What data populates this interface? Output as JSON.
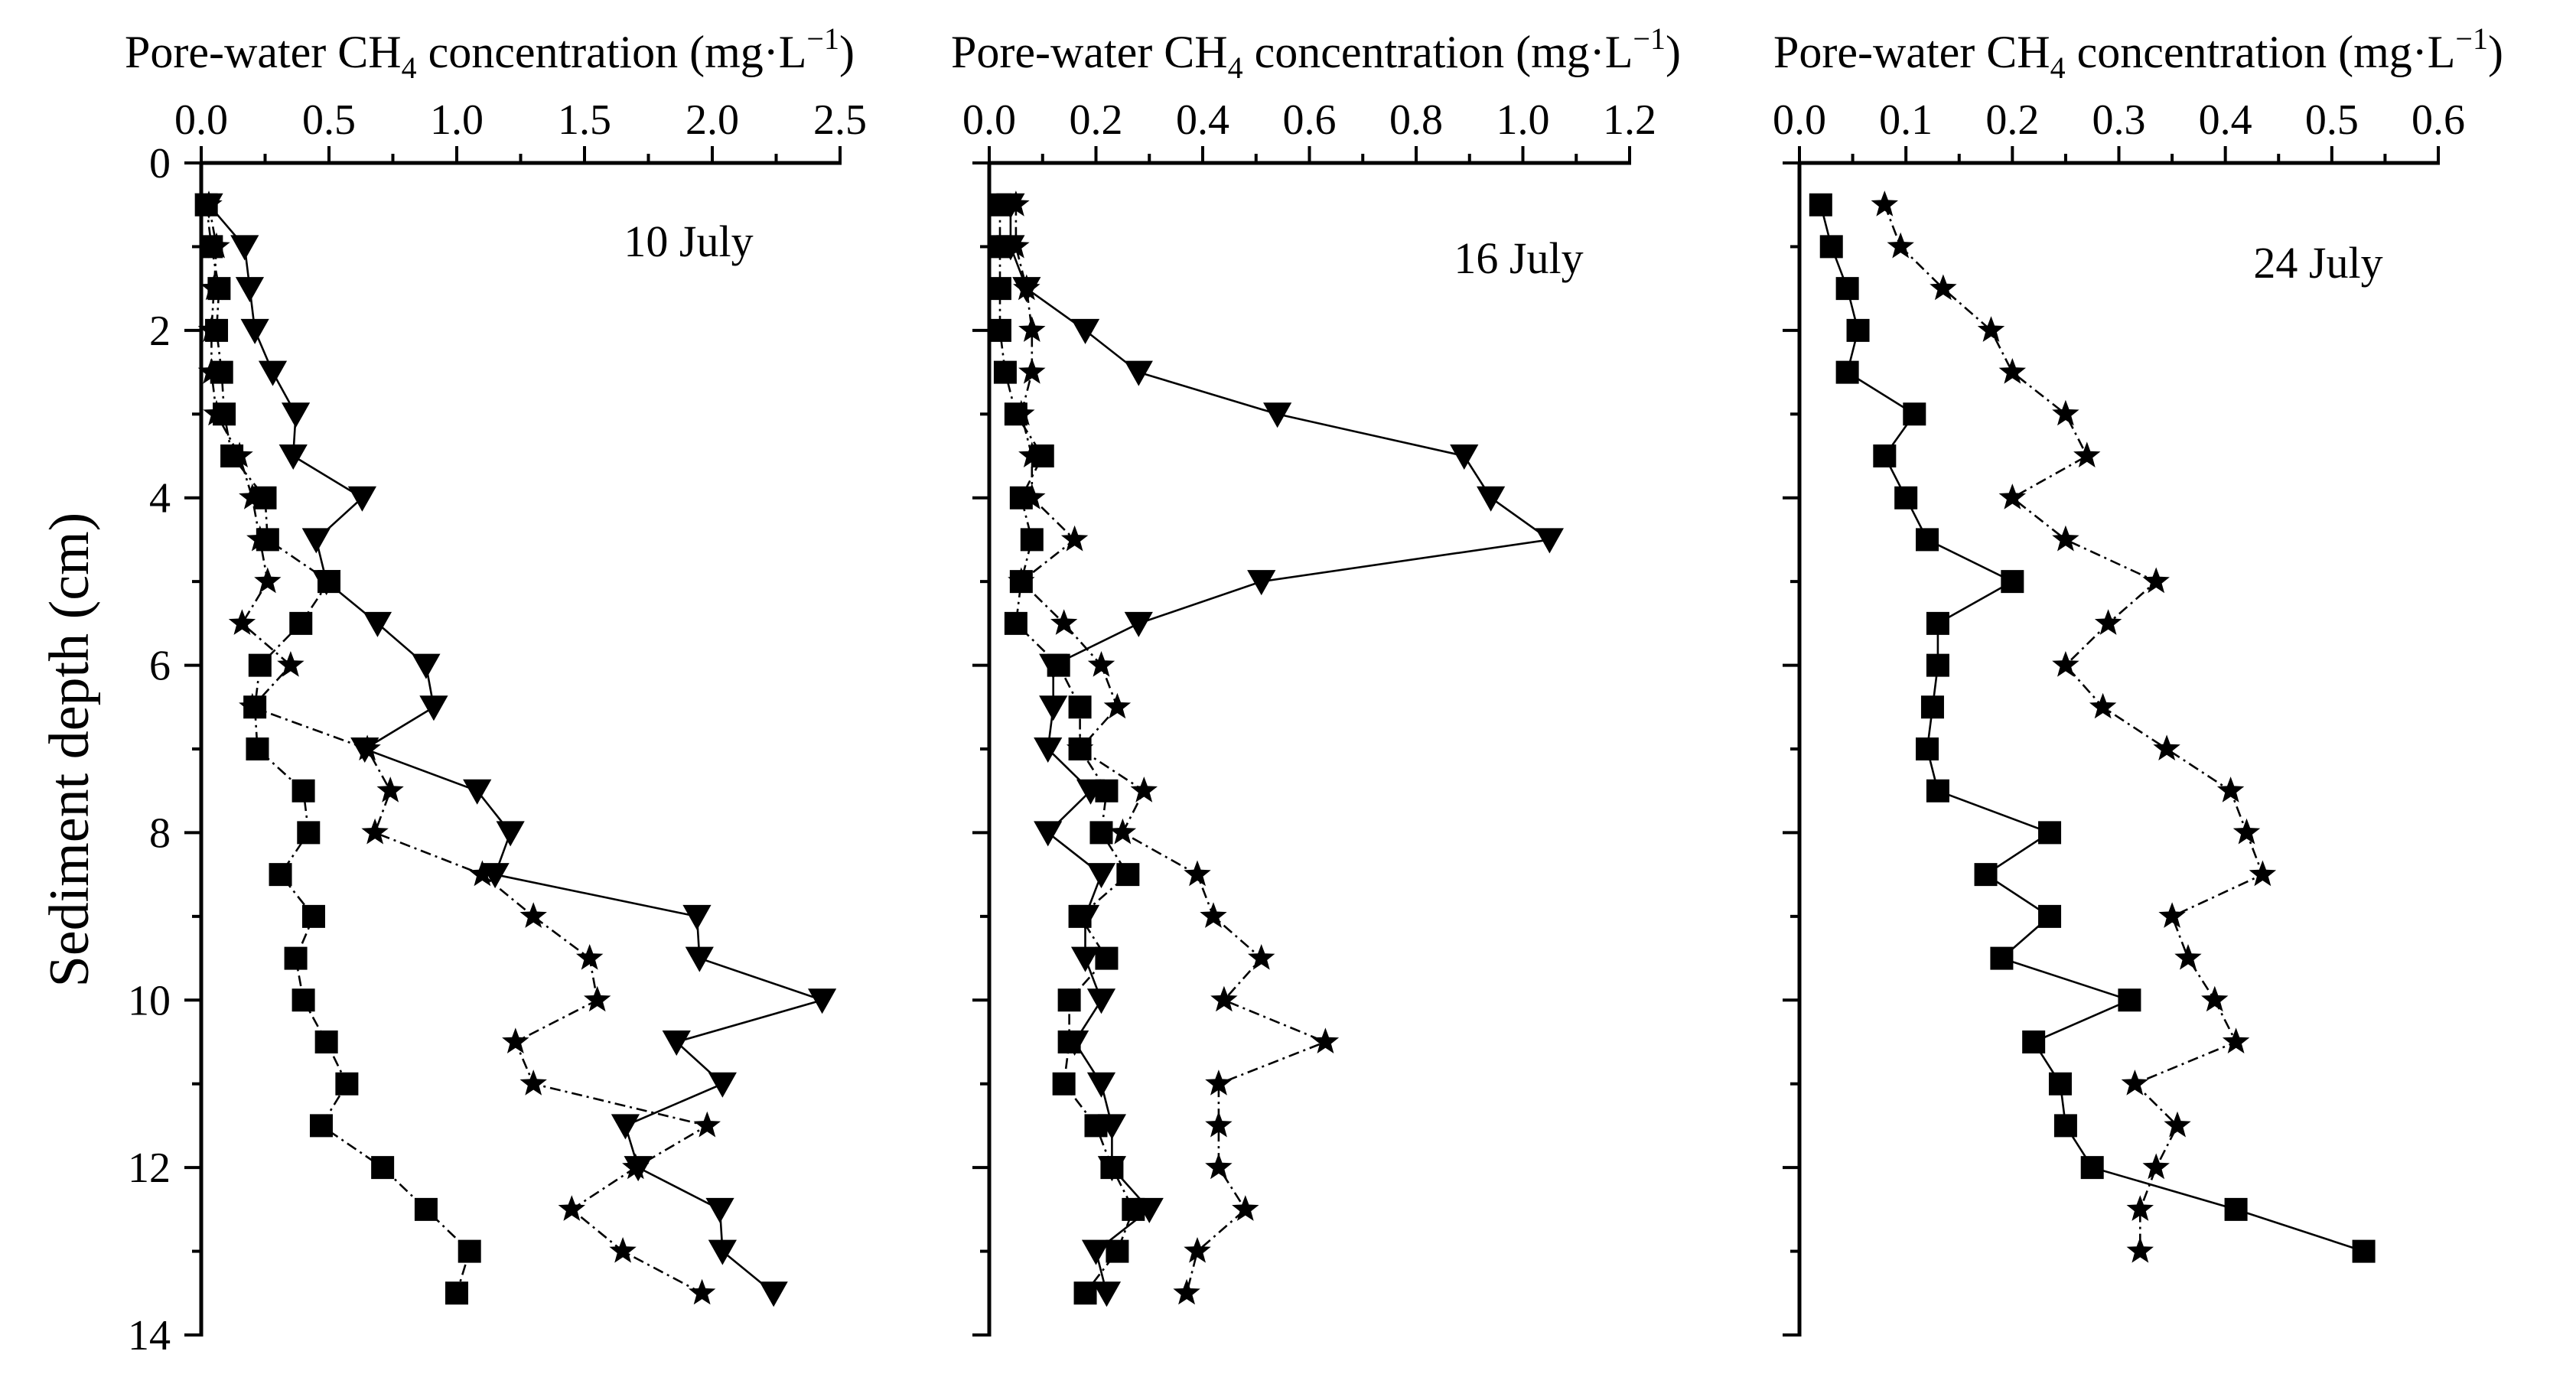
{
  "chart_data": [
    {
      "type": "scatter",
      "title": "",
      "xlabel": "Pore-water CH4 concentration (mg·L−1)",
      "ylabel": "Sediment depth (cm)",
      "date_label": "10 July",
      "xlim": [
        0,
        2.5
      ],
      "ylim": [
        0,
        14
      ],
      "y_inverted": true,
      "x_axis_position": "top",
      "x_ticks": [
        "0.0",
        "0.5",
        "1.0",
        "1.5",
        "2.0",
        "2.5"
      ],
      "x_minor_ticks": [
        0.25,
        0.75,
        1.25,
        1.75,
        2.25
      ],
      "y_ticks": [
        "0",
        "2",
        "4",
        "6",
        "8",
        "10",
        "12",
        "14"
      ],
      "y_minor_ticks": [
        1,
        3,
        5,
        7,
        9,
        11,
        13
      ],
      "series": [
        {
          "marker": "square",
          "line": "dash-dot",
          "points": [
            [
              0.02,
              0.5
            ],
            [
              0.04,
              1
            ],
            [
              0.07,
              1.5
            ],
            [
              0.06,
              2
            ],
            [
              0.08,
              2.5
            ],
            [
              0.09,
              3
            ],
            [
              0.12,
              3.5
            ],
            [
              0.25,
              4
            ],
            [
              0.26,
              4.5
            ],
            [
              0.5,
              5
            ],
            [
              0.39,
              5.5
            ],
            [
              0.23,
              6
            ],
            [
              0.21,
              6.5
            ],
            [
              0.22,
              7
            ],
            [
              0.4,
              7.5
            ],
            [
              0.42,
              8
            ],
            [
              0.31,
              8.5
            ],
            [
              0.44,
              9
            ],
            [
              0.37,
              9.5
            ],
            [
              0.4,
              10
            ],
            [
              0.49,
              10.5
            ],
            [
              0.57,
              11
            ],
            [
              0.47,
              11.5
            ],
            [
              0.71,
              12
            ],
            [
              0.88,
              12.5
            ],
            [
              1.05,
              13
            ],
            [
              1.0,
              13.5
            ]
          ]
        },
        {
          "marker": "star",
          "line": "dash-dot",
          "points": [
            [
              0.03,
              0.5
            ],
            [
              0.06,
              1
            ],
            [
              0.05,
              1.5
            ],
            [
              0.04,
              2
            ],
            [
              0.04,
              2.5
            ],
            [
              0.06,
              3
            ],
            [
              0.15,
              3.5
            ],
            [
              0.2,
              4
            ],
            [
              0.23,
              4.5
            ],
            [
              0.26,
              5
            ],
            [
              0.16,
              5.5
            ],
            [
              0.35,
              6
            ],
            [
              0.2,
              6.5
            ],
            [
              0.65,
              7
            ],
            [
              0.74,
              7.5
            ],
            [
              0.68,
              8
            ],
            [
              1.1,
              8.5
            ],
            [
              1.3,
              9
            ],
            [
              1.52,
              9.5
            ],
            [
              1.55,
              10
            ],
            [
              1.23,
              10.5
            ],
            [
              1.3,
              11
            ],
            [
              1.98,
              11.5
            ],
            [
              1.7,
              12
            ],
            [
              1.45,
              12.5
            ],
            [
              1.65,
              13
            ],
            [
              1.96,
              13.5
            ]
          ]
        },
        {
          "marker": "triangle-down",
          "line": "solid",
          "points": [
            [
              0.03,
              0.5
            ],
            [
              0.17,
              1
            ],
            [
              0.19,
              1.5
            ],
            [
              0.21,
              2
            ],
            [
              0.28,
              2.5
            ],
            [
              0.37,
              3
            ],
            [
              0.36,
              3.5
            ],
            [
              0.63,
              4
            ],
            [
              0.45,
              4.5
            ],
            [
              0.49,
              5
            ],
            [
              0.69,
              5.5
            ],
            [
              0.88,
              6
            ],
            [
              0.91,
              6.5
            ],
            [
              0.64,
              7
            ],
            [
              1.08,
              7.5
            ],
            [
              1.21,
              8
            ],
            [
              1.15,
              8.5
            ],
            [
              1.94,
              9
            ],
            [
              1.95,
              9.5
            ],
            [
              2.43,
              10
            ],
            [
              1.86,
              10.5
            ],
            [
              2.04,
              11
            ],
            [
              1.66,
              11.5
            ],
            [
              1.71,
              12
            ],
            [
              2.03,
              12.5
            ],
            [
              2.04,
              13
            ],
            [
              2.24,
              13.5
            ]
          ]
        }
      ]
    },
    {
      "type": "scatter",
      "title": "",
      "xlabel": "Pore-water CH4 concentration (mg·L−1)",
      "date_label": "16 July",
      "xlim": [
        0,
        1.2
      ],
      "ylim": [
        0,
        14
      ],
      "y_inverted": true,
      "x_axis_position": "top",
      "x_ticks": [
        "0.0",
        "0.2",
        "0.4",
        "0.6",
        "0.8",
        "1.0",
        "1.2"
      ],
      "x_minor_ticks": [
        0.1,
        0.3,
        0.5,
        0.7,
        0.9,
        1.1
      ],
      "series": [
        {
          "marker": "square",
          "line": "dash-dot",
          "points": [
            [
              0.02,
              0.5
            ],
            [
              0.02,
              1
            ],
            [
              0.02,
              1.5
            ],
            [
              0.02,
              2
            ],
            [
              0.03,
              2.5
            ],
            [
              0.05,
              3
            ],
            [
              0.1,
              3.5
            ],
            [
              0.06,
              4
            ],
            [
              0.08,
              4.5
            ],
            [
              0.06,
              5
            ],
            [
              0.05,
              5.5
            ],
            [
              0.13,
              6
            ],
            [
              0.17,
              6.5
            ],
            [
              0.17,
              7
            ],
            [
              0.22,
              7.5
            ],
            [
              0.21,
              8
            ],
            [
              0.26,
              8.5
            ],
            [
              0.17,
              9
            ],
            [
              0.22,
              9.5
            ],
            [
              0.15,
              10
            ],
            [
              0.15,
              10.5
            ],
            [
              0.14,
              11
            ],
            [
              0.2,
              11.5
            ],
            [
              0.23,
              12
            ],
            [
              0.27,
              12.5
            ],
            [
              0.24,
              13
            ],
            [
              0.18,
              13.5
            ]
          ]
        },
        {
          "marker": "star",
          "line": "dash-dot",
          "points": [
            [
              0.05,
              0.5
            ],
            [
              0.05,
              1
            ],
            [
              0.07,
              1.5
            ],
            [
              0.08,
              2
            ],
            [
              0.08,
              2.5
            ],
            [
              0.06,
              3
            ],
            [
              0.08,
              3.5
            ],
            [
              0.08,
              4
            ],
            [
              0.16,
              4.5
            ],
            [
              0.06,
              5
            ],
            [
              0.14,
              5.5
            ],
            [
              0.21,
              6
            ],
            [
              0.24,
              6.5
            ],
            [
              0.17,
              7
            ],
            [
              0.29,
              7.5
            ],
            [
              0.25,
              8
            ],
            [
              0.39,
              8.5
            ],
            [
              0.42,
              9
            ],
            [
              0.51,
              9.5
            ],
            [
              0.44,
              10
            ],
            [
              0.63,
              10.5
            ],
            [
              0.43,
              11
            ],
            [
              0.43,
              11.5
            ],
            [
              0.43,
              12
            ],
            [
              0.48,
              12.5
            ],
            [
              0.39,
              13
            ],
            [
              0.37,
              13.5
            ]
          ]
        },
        {
          "marker": "triangle-down",
          "line": "solid",
          "points": [
            [
              0.04,
              0.5
            ],
            [
              0.04,
              1
            ],
            [
              0.07,
              1.5
            ],
            [
              0.18,
              2
            ],
            [
              0.28,
              2.5
            ],
            [
              0.54,
              3
            ],
            [
              0.89,
              3.5
            ],
            [
              0.94,
              4
            ],
            [
              1.05,
              4.5
            ],
            [
              0.51,
              5
            ],
            [
              0.28,
              5.5
            ],
            [
              0.12,
              6
            ],
            [
              0.12,
              6.5
            ],
            [
              0.11,
              7
            ],
            [
              0.19,
              7.5
            ],
            [
              0.11,
              8
            ],
            [
              0.21,
              8.5
            ],
            [
              0.18,
              9
            ],
            [
              0.18,
              9.5
            ],
            [
              0.21,
              10
            ],
            [
              0.16,
              10.5
            ],
            [
              0.21,
              11
            ],
            [
              0.23,
              11.5
            ],
            [
              0.23,
              12
            ],
            [
              0.3,
              12.5
            ],
            [
              0.2,
              13
            ],
            [
              0.22,
              13.5
            ]
          ]
        }
      ]
    },
    {
      "type": "scatter",
      "title": "",
      "xlabel": "Pore-water CH4 concentration (mg·L−1)",
      "date_label": "24 July",
      "xlim": [
        0,
        0.6
      ],
      "ylim": [
        0,
        14
      ],
      "y_inverted": true,
      "x_axis_position": "top",
      "x_ticks": [
        "0.0",
        "0.1",
        "0.2",
        "0.3",
        "0.4",
        "0.5",
        "0.6"
      ],
      "x_minor_ticks": [
        0.05,
        0.15,
        0.25,
        0.35,
        0.45,
        0.55
      ],
      "series": [
        {
          "marker": "square",
          "line": "solid",
          "points": [
            [
              0.02,
              0.5
            ],
            [
              0.03,
              1
            ],
            [
              0.045,
              1.5
            ],
            [
              0.055,
              2
            ],
            [
              0.045,
              2.5
            ],
            [
              0.108,
              3
            ],
            [
              0.08,
              3.5
            ],
            [
              0.1,
              4
            ],
            [
              0.12,
              4.5
            ],
            [
              0.2,
              5
            ],
            [
              0.13,
              5.5
            ],
            [
              0.13,
              6
            ],
            [
              0.125,
              6.5
            ],
            [
              0.12,
              7
            ],
            [
              0.13,
              7.5
            ],
            [
              0.235,
              8
            ],
            [
              0.175,
              8.5
            ],
            [
              0.235,
              9
            ],
            [
              0.19,
              9.5
            ],
            [
              0.31,
              10
            ],
            [
              0.22,
              10.5
            ],
            [
              0.245,
              11
            ],
            [
              0.25,
              11.5
            ],
            [
              0.275,
              12
            ],
            [
              0.41,
              12.5
            ],
            [
              0.53,
              13
            ]
          ]
        },
        {
          "marker": "star",
          "line": "dash-dot",
          "points": [
            [
              0.08,
              0.5
            ],
            [
              0.095,
              1
            ],
            [
              0.135,
              1.5
            ],
            [
              0.18,
              2
            ],
            [
              0.2,
              2.5
            ],
            [
              0.25,
              3
            ],
            [
              0.27,
              3.5
            ],
            [
              0.2,
              4
            ],
            [
              0.25,
              4.5
            ],
            [
              0.335,
              5
            ],
            [
              0.29,
              5.5
            ],
            [
              0.25,
              6
            ],
            [
              0.285,
              6.5
            ],
            [
              0.345,
              7
            ],
            [
              0.405,
              7.5
            ],
            [
              0.42,
              8
            ],
            [
              0.435,
              8.5
            ],
            [
              0.35,
              9
            ],
            [
              0.365,
              9.5
            ],
            [
              0.39,
              10
            ],
            [
              0.41,
              10.5
            ],
            [
              0.315,
              11
            ],
            [
              0.355,
              11.5
            ],
            [
              0.335,
              12
            ],
            [
              0.32,
              12.5
            ],
            [
              0.32,
              13
            ]
          ]
        }
      ]
    }
  ]
}
